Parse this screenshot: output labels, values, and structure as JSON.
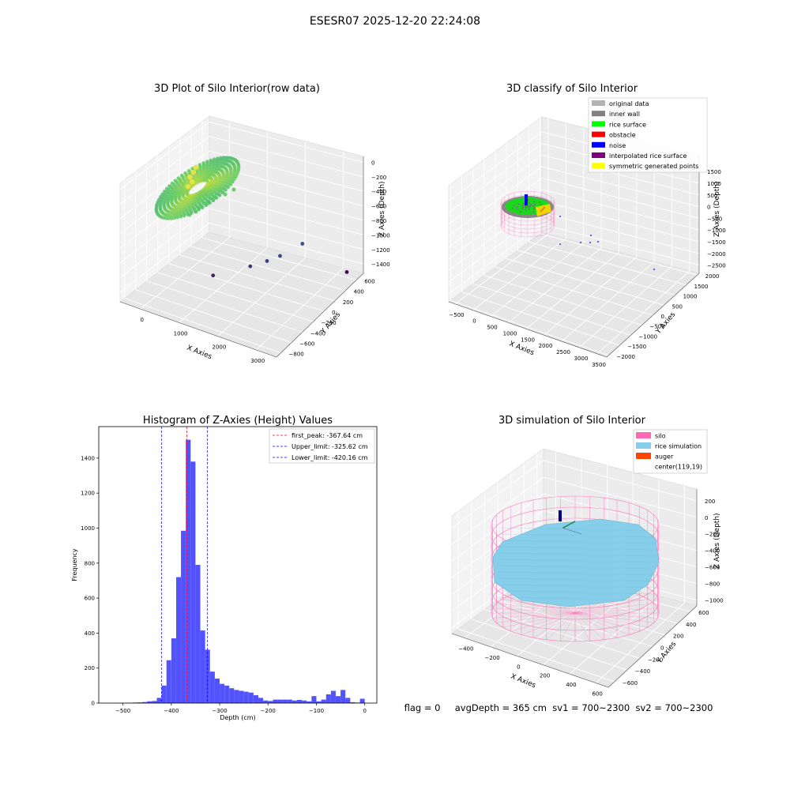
{
  "suptitle": "ESESR07 2025-12-20 22:24:08",
  "chart_data": [
    {
      "type": "scatter",
      "title": "3D Plot of Silo Interior(row data)",
      "xlabel": "X Axies",
      "ylabel": "Y Axies",
      "zlabel": "Z Axies (Depth)",
      "x_ticks": [
        "0",
        "1000",
        "2000",
        "3000"
      ],
      "y_ticks": [
        "600",
        "400",
        "200",
        "0",
        "−200",
        "−400",
        "−600",
        "−800"
      ],
      "z_ticks": [
        "0",
        "−200",
        "−400",
        "−600",
        "−800",
        "−1000",
        "−1200",
        "−1400"
      ],
      "xlim": [
        -500,
        3700
      ],
      "ylim": [
        -850,
        700
      ],
      "zlim": [
        -1500,
        100
      ],
      "outliers": [
        {
          "x": 1000,
          "y": -200,
          "z": -1300
        },
        {
          "x": 1700,
          "y": 0,
          "z": -1200
        },
        {
          "x": 2000,
          "y": 100,
          "z": -1150
        },
        {
          "x": 2200,
          "y": 200,
          "z": -1120
        },
        {
          "x": 2500,
          "y": 400,
          "z": -1050
        },
        {
          "x": 3400,
          "y": 600,
          "z": -1450
        }
      ],
      "colormap": "viridis"
    },
    {
      "type": "scatter",
      "title": "3D classify of Silo Interior",
      "xlabel": "X Axies",
      "ylabel": "Y Axies",
      "zlabel": "Z Axies (Depth)",
      "x_ticks": [
        "−500",
        "0",
        "500",
        "1000",
        "1500",
        "2000",
        "2500",
        "3000",
        "3500"
      ],
      "y_ticks": [
        "2000",
        "1500",
        "1000",
        "500",
        "0",
        "−500",
        "−1000",
        "−1500",
        "−2000"
      ],
      "z_ticks": [
        "1500",
        "1000",
        "500",
        "0",
        "−500",
        "−1000",
        "−1500",
        "−2000",
        "−2500"
      ],
      "xlim": [
        -600,
        3600
      ],
      "ylim": [
        -2100,
        2100
      ],
      "zlim": [
        -2700,
        1700
      ],
      "legend": [
        {
          "label": "original data",
          "color": "#b3b3b3"
        },
        {
          "label": "inner wall",
          "color": "#808080"
        },
        {
          "label": "rice surface",
          "color": "#00ff00"
        },
        {
          "label": "obstacle",
          "color": "#ff0000"
        },
        {
          "label": "noise",
          "color": "#0000ff"
        },
        {
          "label": "interpolated rice surface",
          "color": "#800080"
        },
        {
          "label": "symmetric generated points",
          "color": "#ffff00"
        }
      ],
      "legend_loc": "upper right"
    },
    {
      "type": "bar",
      "title": "Histogram of Z-Axies (Height) Values",
      "xlabel": "Depth (cm)",
      "ylabel": "Frequency",
      "xlim": [
        -550,
        25
      ],
      "ylim": [
        0,
        1580
      ],
      "x_ticks": [
        -500,
        -400,
        -300,
        -200,
        -100,
        0
      ],
      "x_tick_labels": [
        "−500",
        "−400",
        "−300",
        "−200",
        "−100",
        "0"
      ],
      "y_ticks": [
        0,
        200,
        400,
        600,
        800,
        1000,
        1200,
        1400
      ],
      "bar_color": "#0000ff",
      "bin_width": 9.9,
      "bins": [
        {
          "x": -505,
          "y": 1
        },
        {
          "x": -495,
          "y": 1
        },
        {
          "x": -485,
          "y": 2
        },
        {
          "x": -475,
          "y": 3
        },
        {
          "x": -465,
          "y": 4
        },
        {
          "x": -455,
          "y": 6
        },
        {
          "x": -445,
          "y": 10
        },
        {
          "x": -435,
          "y": 12
        },
        {
          "x": -425,
          "y": 30
        },
        {
          "x": -415,
          "y": 100
        },
        {
          "x": -405,
          "y": 245
        },
        {
          "x": -395,
          "y": 370
        },
        {
          "x": -385,
          "y": 720
        },
        {
          "x": -375,
          "y": 985
        },
        {
          "x": -365,
          "y": 1505
        },
        {
          "x": -355,
          "y": 1380
        },
        {
          "x": -345,
          "y": 790
        },
        {
          "x": -335,
          "y": 415
        },
        {
          "x": -325,
          "y": 305
        },
        {
          "x": -315,
          "y": 180
        },
        {
          "x": -305,
          "y": 140
        },
        {
          "x": -295,
          "y": 110
        },
        {
          "x": -285,
          "y": 100
        },
        {
          "x": -275,
          "y": 85
        },
        {
          "x": -265,
          "y": 75
        },
        {
          "x": -255,
          "y": 70
        },
        {
          "x": -245,
          "y": 65
        },
        {
          "x": -235,
          "y": 60
        },
        {
          "x": -225,
          "y": 45
        },
        {
          "x": -215,
          "y": 30
        },
        {
          "x": -205,
          "y": 15
        },
        {
          "x": -195,
          "y": 12
        },
        {
          "x": -185,
          "y": 20
        },
        {
          "x": -175,
          "y": 20
        },
        {
          "x": -165,
          "y": 20
        },
        {
          "x": -155,
          "y": 20
        },
        {
          "x": -145,
          "y": 15
        },
        {
          "x": -135,
          "y": 18
        },
        {
          "x": -125,
          "y": 15
        },
        {
          "x": -115,
          "y": 10
        },
        {
          "x": -105,
          "y": 40
        },
        {
          "x": -95,
          "y": 10
        },
        {
          "x": -85,
          "y": 20
        },
        {
          "x": -75,
          "y": 50
        },
        {
          "x": -65,
          "y": 70
        },
        {
          "x": -55,
          "y": 40
        },
        {
          "x": -45,
          "y": 75
        },
        {
          "x": -35,
          "y": 30
        },
        {
          "x": -25,
          "y": 5
        },
        {
          "x": -15,
          "y": 3
        },
        {
          "x": -5,
          "y": 25
        }
      ],
      "vlines": [
        {
          "x": -367.64,
          "color": "#ff0000",
          "label": "first_peak: -367.64 cm"
        },
        {
          "x": -325.62,
          "color": "#0000ff",
          "label": "Upper_limit: -325.62 cm"
        },
        {
          "x": -420.16,
          "color": "#0000ff",
          "label": "Lower_limit: -420.16 cm"
        }
      ],
      "legend_loc": "upper right"
    },
    {
      "type": "scatter",
      "title": "3D simulation of Silo Interior",
      "xlabel": "X Axies",
      "ylabel": "Y Axies",
      "zlabel": "Z Axies (Depth)",
      "x_ticks": [
        "−400",
        "−200",
        "0",
        "200",
        "400",
        "600"
      ],
      "y_ticks": [
        "600",
        "400",
        "200",
        "0",
        "−200",
        "−400",
        "−600"
      ],
      "z_ticks": [
        "200",
        "0",
        "−200",
        "−400",
        "−600",
        "−800",
        "−1000"
      ],
      "xlim": [
        -500,
        700
      ],
      "ylim": [
        -700,
        700
      ],
      "zlim": [
        -1000,
        250
      ],
      "legend": [
        {
          "label": "silo",
          "color": "#ff69b4"
        },
        {
          "label": "rice simulation",
          "color": "#87ceeb"
        },
        {
          "label": "auger",
          "color": "#ff4500"
        },
        {
          "label": "center(119,19)",
          "color": ""
        }
      ],
      "legend_loc": "upper right"
    }
  ],
  "status": "flag = 0     avgDepth = 365 cm  sv1 = 700~2300  sv2 = 700~2300"
}
